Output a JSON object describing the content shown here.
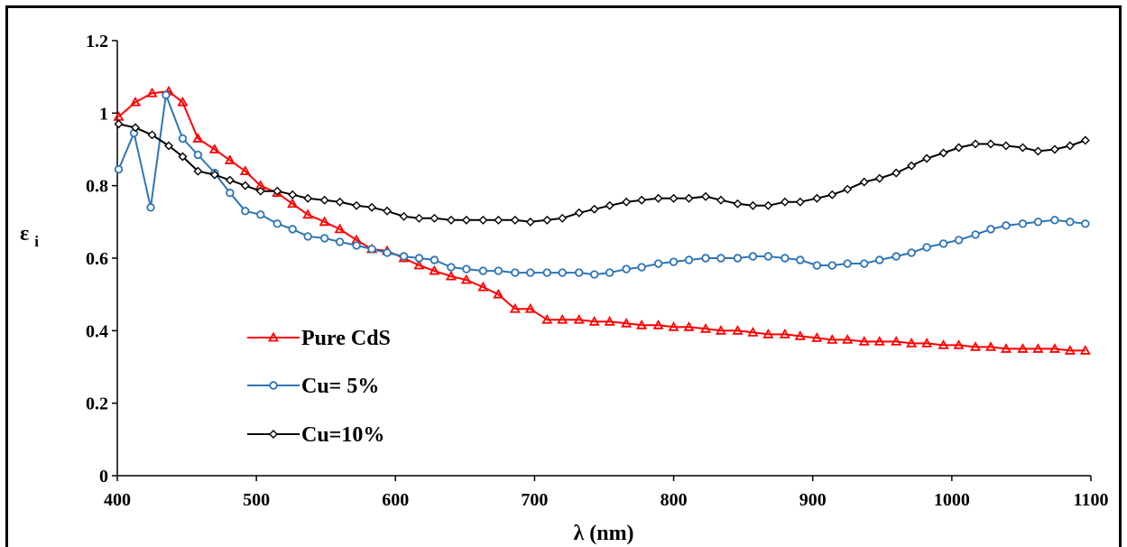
{
  "chart_data": {
    "type": "line",
    "title": "",
    "xlabel": "λ (nm)",
    "ylabel_main": "ε",
    "ylabel_sub": "i",
    "xlim": [
      400,
      1100
    ],
    "ylim": [
      0,
      1.2
    ],
    "xticks": [
      400,
      500,
      600,
      700,
      800,
      900,
      1000,
      1100
    ],
    "yticks": [
      0,
      0.2,
      0.4,
      0.6,
      0.8,
      1,
      1.2
    ],
    "ytick_labels": [
      "0",
      "0.2",
      "0.4",
      "0.6",
      "0.8",
      "1",
      "1.2"
    ],
    "grid": false,
    "legend_position": "bottom-left",
    "series": [
      {
        "name": "Pure CdS",
        "color": "#ff0000",
        "marker": "triangle",
        "points": [
          [
            401,
            0.99
          ],
          [
            413,
            1.03
          ],
          [
            425,
            1.055
          ],
          [
            437,
            1.06
          ],
          [
            447,
            1.03
          ],
          [
            458,
            0.93
          ],
          [
            470,
            0.9
          ],
          [
            481,
            0.87
          ],
          [
            492,
            0.84
          ],
          [
            503,
            0.8
          ],
          [
            515,
            0.78
          ],
          [
            526,
            0.75
          ],
          [
            537,
            0.72
          ],
          [
            549,
            0.7
          ],
          [
            560,
            0.68
          ],
          [
            572,
            0.65
          ],
          [
            583,
            0.625
          ],
          [
            594,
            0.62
          ],
          [
            606,
            0.6
          ],
          [
            617,
            0.58
          ],
          [
            628,
            0.565
          ],
          [
            640,
            0.55
          ],
          [
            651,
            0.54
          ],
          [
            663,
            0.52
          ],
          [
            674,
            0.5
          ],
          [
            686,
            0.46
          ],
          [
            697,
            0.46
          ],
          [
            709,
            0.43
          ],
          [
            720,
            0.43
          ],
          [
            732,
            0.43
          ],
          [
            743,
            0.425
          ],
          [
            754,
            0.425
          ],
          [
            766,
            0.42
          ],
          [
            777,
            0.415
          ],
          [
            789,
            0.415
          ],
          [
            800,
            0.41
          ],
          [
            811,
            0.41
          ],
          [
            823,
            0.405
          ],
          [
            834,
            0.4
          ],
          [
            846,
            0.4
          ],
          [
            857,
            0.395
          ],
          [
            868,
            0.39
          ],
          [
            880,
            0.39
          ],
          [
            891,
            0.385
          ],
          [
            903,
            0.38
          ],
          [
            914,
            0.375
          ],
          [
            925,
            0.375
          ],
          [
            937,
            0.37
          ],
          [
            948,
            0.37
          ],
          [
            960,
            0.37
          ],
          [
            971,
            0.365
          ],
          [
            982,
            0.365
          ],
          [
            994,
            0.36
          ],
          [
            1005,
            0.36
          ],
          [
            1017,
            0.355
          ],
          [
            1028,
            0.355
          ],
          [
            1039,
            0.35
          ],
          [
            1051,
            0.35
          ],
          [
            1062,
            0.35
          ],
          [
            1074,
            0.35
          ],
          [
            1085,
            0.345
          ],
          [
            1096,
            0.345
          ]
        ]
      },
      {
        "name": "Cu= 5%",
        "color": "#2e75b6",
        "marker": "circle",
        "points": [
          [
            401,
            0.845
          ],
          [
            412,
            0.945
          ],
          [
            424,
            0.74
          ],
          [
            435,
            1.05
          ],
          [
            447,
            0.93
          ],
          [
            458,
            0.885
          ],
          [
            470,
            0.835
          ],
          [
            481,
            0.78
          ],
          [
            492,
            0.73
          ],
          [
            503,
            0.72
          ],
          [
            515,
            0.695
          ],
          [
            526,
            0.68
          ],
          [
            537,
            0.66
          ],
          [
            549,
            0.655
          ],
          [
            560,
            0.645
          ],
          [
            572,
            0.635
          ],
          [
            583,
            0.625
          ],
          [
            594,
            0.615
          ],
          [
            606,
            0.605
          ],
          [
            617,
            0.6
          ],
          [
            628,
            0.595
          ],
          [
            640,
            0.575
          ],
          [
            651,
            0.57
          ],
          [
            663,
            0.565
          ],
          [
            674,
            0.565
          ],
          [
            686,
            0.56
          ],
          [
            697,
            0.56
          ],
          [
            709,
            0.56
          ],
          [
            720,
            0.56
          ],
          [
            732,
            0.56
          ],
          [
            743,
            0.555
          ],
          [
            754,
            0.56
          ],
          [
            766,
            0.57
          ],
          [
            777,
            0.575
          ],
          [
            789,
            0.585
          ],
          [
            800,
            0.59
          ],
          [
            811,
            0.595
          ],
          [
            823,
            0.6
          ],
          [
            834,
            0.6
          ],
          [
            846,
            0.6
          ],
          [
            857,
            0.605
          ],
          [
            868,
            0.605
          ],
          [
            880,
            0.6
          ],
          [
            891,
            0.595
          ],
          [
            903,
            0.58
          ],
          [
            914,
            0.58
          ],
          [
            925,
            0.585
          ],
          [
            937,
            0.585
          ],
          [
            948,
            0.595
          ],
          [
            960,
            0.605
          ],
          [
            971,
            0.615
          ],
          [
            982,
            0.63
          ],
          [
            994,
            0.64
          ],
          [
            1005,
            0.65
          ],
          [
            1017,
            0.665
          ],
          [
            1028,
            0.68
          ],
          [
            1039,
            0.69
          ],
          [
            1051,
            0.695
          ],
          [
            1062,
            0.7
          ],
          [
            1074,
            0.705
          ],
          [
            1085,
            0.7
          ],
          [
            1096,
            0.695
          ]
        ]
      },
      {
        "name": "Cu=10%",
        "color": "#000000",
        "marker": "diamond",
        "points": [
          [
            401,
            0.97
          ],
          [
            413,
            0.96
          ],
          [
            425,
            0.94
          ],
          [
            437,
            0.91
          ],
          [
            447,
            0.88
          ],
          [
            458,
            0.84
          ],
          [
            470,
            0.83
          ],
          [
            481,
            0.815
          ],
          [
            492,
            0.8
          ],
          [
            503,
            0.785
          ],
          [
            515,
            0.785
          ],
          [
            526,
            0.775
          ],
          [
            537,
            0.765
          ],
          [
            549,
            0.76
          ],
          [
            560,
            0.755
          ],
          [
            572,
            0.745
          ],
          [
            583,
            0.74
          ],
          [
            594,
            0.73
          ],
          [
            606,
            0.715
          ],
          [
            617,
            0.71
          ],
          [
            628,
            0.71
          ],
          [
            640,
            0.705
          ],
          [
            651,
            0.705
          ],
          [
            663,
            0.705
          ],
          [
            674,
            0.705
          ],
          [
            686,
            0.705
          ],
          [
            697,
            0.7
          ],
          [
            709,
            0.705
          ],
          [
            720,
            0.71
          ],
          [
            732,
            0.725
          ],
          [
            743,
            0.735
          ],
          [
            754,
            0.745
          ],
          [
            766,
            0.755
          ],
          [
            777,
            0.76
          ],
          [
            789,
            0.765
          ],
          [
            800,
            0.765
          ],
          [
            811,
            0.765
          ],
          [
            823,
            0.77
          ],
          [
            834,
            0.76
          ],
          [
            846,
            0.75
          ],
          [
            857,
            0.745
          ],
          [
            868,
            0.745
          ],
          [
            880,
            0.755
          ],
          [
            891,
            0.755
          ],
          [
            903,
            0.765
          ],
          [
            914,
            0.775
          ],
          [
            925,
            0.79
          ],
          [
            937,
            0.81
          ],
          [
            948,
            0.82
          ],
          [
            960,
            0.835
          ],
          [
            971,
            0.855
          ],
          [
            982,
            0.875
          ],
          [
            994,
            0.89
          ],
          [
            1005,
            0.905
          ],
          [
            1017,
            0.915
          ],
          [
            1028,
            0.915
          ],
          [
            1039,
            0.91
          ],
          [
            1051,
            0.905
          ],
          [
            1062,
            0.895
          ],
          [
            1074,
            0.9
          ],
          [
            1085,
            0.91
          ],
          [
            1096,
            0.925
          ]
        ]
      }
    ]
  }
}
